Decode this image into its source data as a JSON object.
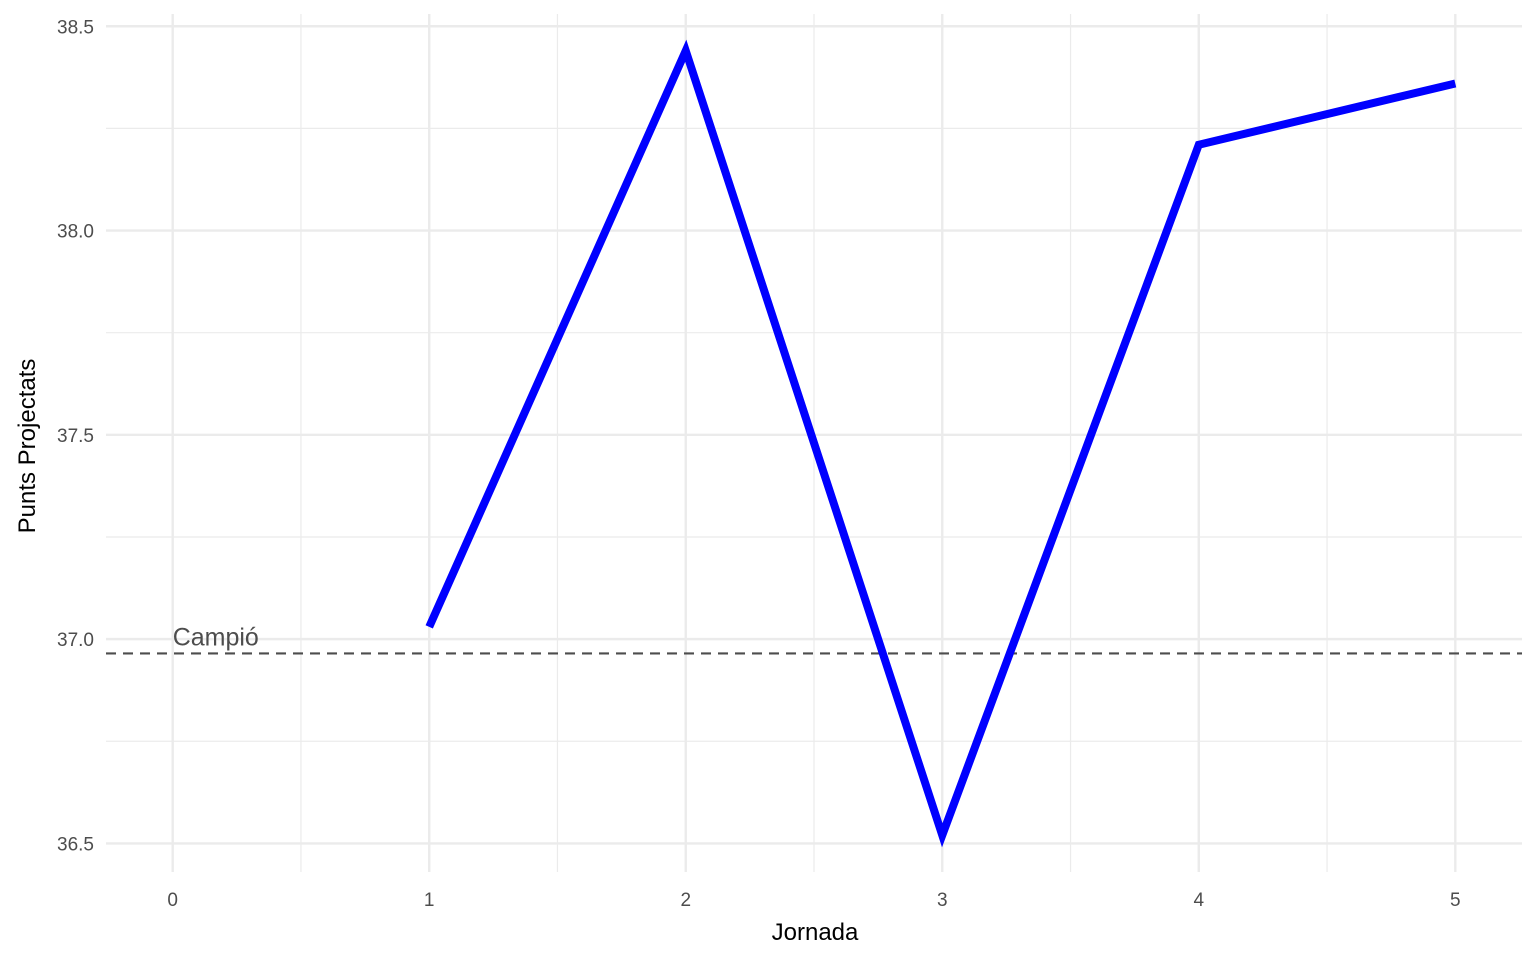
{
  "chart_data": {
    "type": "line",
    "xlabel": "Jornada",
    "ylabel": "Punts Projectats",
    "xlim": [
      -0.26,
      5.26
    ],
    "ylim": [
      36.43,
      38.53
    ],
    "x_ticks": [
      0,
      1,
      2,
      3,
      4,
      5
    ],
    "x_minor_ticks": [
      0.5,
      1.5,
      2.5,
      3.5,
      4.5
    ],
    "y_ticks": [
      36.5,
      37.0,
      37.5,
      38.0,
      38.5
    ],
    "y_tick_labels": [
      "36.5",
      "37.0",
      "37.5",
      "38.0",
      "38.5"
    ],
    "y_minor_ticks": [
      36.75,
      37.25,
      37.75,
      38.25
    ],
    "grid": true,
    "series": [
      {
        "x": [
          1,
          2,
          3,
          4,
          5
        ],
        "y": [
          37.03,
          38.44,
          36.52,
          38.21,
          38.36
        ],
        "color": "#0000ff"
      }
    ],
    "reference_line": {
      "y": 36.965,
      "style": "dashed",
      "color": "#4d4d4d",
      "label": "Campió",
      "label_x": 0
    }
  }
}
